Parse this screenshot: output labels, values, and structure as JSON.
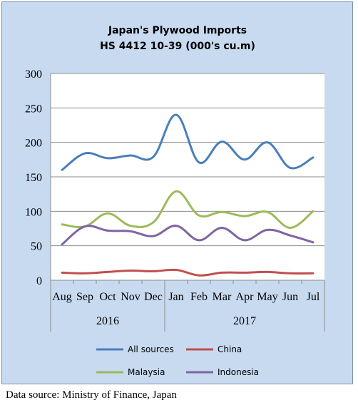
{
  "chart_data": {
    "type": "line",
    "title_line1": "Japan's Plywood Imports",
    "title_line2": "HS 4412 10-39  (000's cu.m)",
    "categories": [
      "Aug",
      "Sep",
      "Oct",
      "Nov",
      "Dec",
      "Jan",
      "Feb",
      "Mar",
      "Apr",
      "May",
      "Jun",
      "Jul"
    ],
    "groups": [
      {
        "label": "2016",
        "start": 0,
        "end": 4
      },
      {
        "label": "2017",
        "start": 5,
        "end": 11
      }
    ],
    "ylim": [
      0,
      300
    ],
    "yticks": [
      0,
      50,
      100,
      150,
      200,
      250,
      300
    ],
    "grid": "horizontal",
    "legend_position": "bottom",
    "series": [
      {
        "name": "All sources",
        "color": "#4a7ebb",
        "values": [
          160,
          184,
          177,
          181,
          179,
          240,
          171,
          201,
          175,
          200,
          163,
          178
        ]
      },
      {
        "name": "China",
        "color": "#c0504d",
        "values": [
          11,
          10,
          12,
          14,
          13,
          15,
          7,
          11,
          11,
          12,
          10,
          10
        ]
      },
      {
        "name": "Malaysia",
        "color": "#9bbb59",
        "values": [
          81,
          78,
          97,
          79,
          84,
          129,
          94,
          99,
          93,
          99,
          76,
          100
        ]
      },
      {
        "name": "Indonesia",
        "color": "#8064a2",
        "values": [
          52,
          78,
          72,
          71,
          64,
          79,
          58,
          76,
          58,
          73,
          65,
          55
        ]
      }
    ]
  },
  "footer": {
    "source": "Data source: Ministry of Finance, Japan"
  }
}
